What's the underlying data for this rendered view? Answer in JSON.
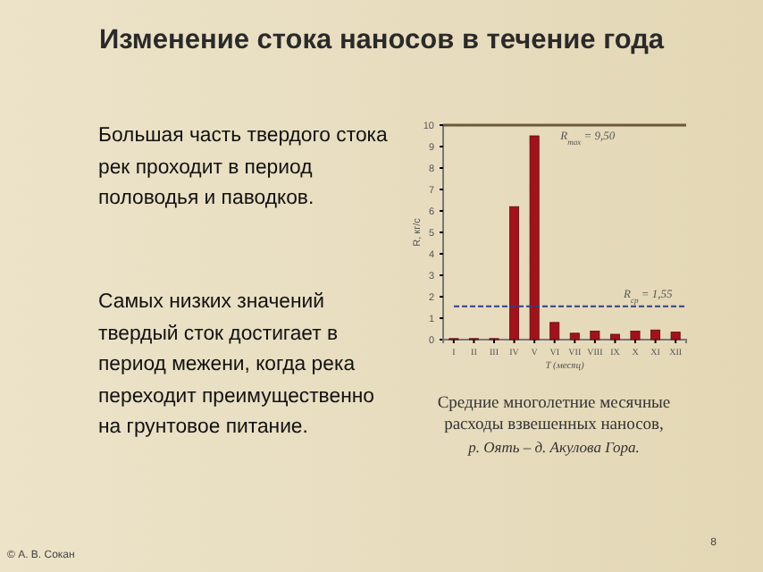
{
  "chart_data": {
    "type": "bar",
    "title": "Изменение стока наносов в течение года",
    "categories": [
      "I",
      "II",
      "III",
      "IV",
      "V",
      "VI",
      "VII",
      "VIII",
      "IX",
      "X",
      "XI",
      "XII"
    ],
    "values": [
      0.05,
      0.05,
      0.05,
      6.2,
      9.5,
      0.8,
      0.3,
      0.4,
      0.25,
      0.4,
      0.45,
      0.35
    ],
    "color": "#a3121b",
    "ylim": [
      0,
      10
    ],
    "yticks": [
      0,
      1,
      2,
      3,
      4,
      5,
      6,
      7,
      8,
      9,
      10
    ],
    "xlabel": "T (месяц)",
    "ylabel": "R, кг/с",
    "grid": false,
    "ref_lines": [
      {
        "axis": "y",
        "value": 1.55,
        "label": "R$_{ср}$ = 1,55",
        "color": "#2b3f8f",
        "line_style": "dashed"
      }
    ],
    "annotations": [
      {
        "text": "R$_{max}$ = 9,50",
        "x": "V",
        "y": 9.5
      },
      "Большая часть твердого стока рек проходит в период половодья и паводков.",
      "Самых низких значений твердый сток достигает в период межени, когда река переходит преимущественно на грунтовое питание.",
      "Средние многолетние месячные расходы взвешенных наносов, р. Оять – д. Акулова Гора.",
      "© А. В. Сокан",
      "8"
    ]
  }
}
